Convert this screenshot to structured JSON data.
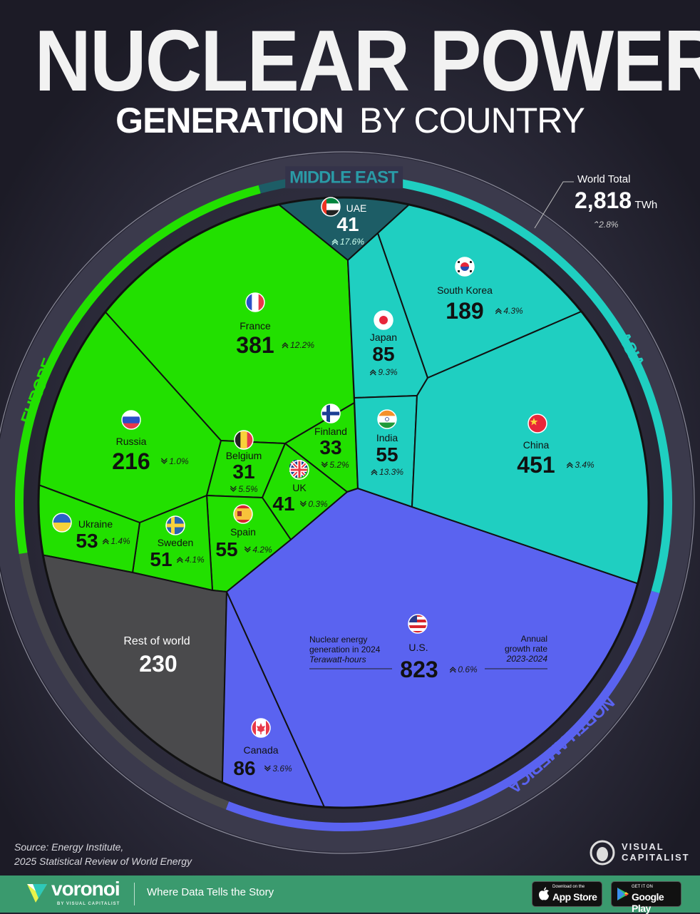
{
  "title": {
    "line1": "NUCLEAR POWER",
    "line2_bold": "GENERATION",
    "line2_light": "BY COUNTRY"
  },
  "world_total": {
    "label": "World Total",
    "value": "2,818",
    "unit": "TWh",
    "growth": "2.8%",
    "growth_direction": "up"
  },
  "colors": {
    "Europe": "#22e000",
    "Asia": "#1fcfc1",
    "Middle East": "#1d5d66",
    "North America": "#5a63f0",
    "Rest of world": "#4a4a4c",
    "background": "#22212e"
  },
  "regions": [
    "EUROPE",
    "MIDDLE EAST",
    "ASIA",
    "NORTH AMERICA"
  ],
  "annotation": {
    "left_line1": "Nuclear energy",
    "left_line2": "generation in 2024",
    "left_line3": "Terawatt-hours",
    "right_line1": "Annual",
    "right_line2": "growth rate",
    "right_line3": "2023-2024"
  },
  "chart_data": {
    "type": "voronoi",
    "unit": "TWh",
    "items": [
      {
        "country": "UAE",
        "region": "Middle East",
        "value": 41,
        "growth": "17.6%",
        "direction": "up",
        "icon": "uae-flag-icon"
      },
      {
        "country": "France",
        "region": "Europe",
        "value": 381,
        "growth": "12.2%",
        "direction": "up",
        "icon": "france-flag-icon"
      },
      {
        "country": "Russia",
        "region": "Europe",
        "value": 216,
        "growth": "1.0%",
        "direction": "down",
        "icon": "russia-flag-icon"
      },
      {
        "country": "Belgium",
        "region": "Europe",
        "value": 31,
        "growth": "5.5%",
        "direction": "down",
        "icon": "belgium-flag-icon"
      },
      {
        "country": "Finland",
        "region": "Europe",
        "value": 33,
        "growth": "5.2%",
        "direction": "down",
        "icon": "finland-flag-icon"
      },
      {
        "country": "UK",
        "region": "Europe",
        "value": 41,
        "growth": "0.3%",
        "direction": "down",
        "icon": "uk-flag-icon"
      },
      {
        "country": "Spain",
        "region": "Europe",
        "value": 55,
        "growth": "4.2%",
        "direction": "down",
        "icon": "spain-flag-icon"
      },
      {
        "country": "Sweden",
        "region": "Europe",
        "value": 51,
        "growth": "4.1%",
        "direction": "up",
        "icon": "sweden-flag-icon"
      },
      {
        "country": "Ukraine",
        "region": "Europe",
        "value": 53,
        "growth": "1.4%",
        "direction": "up",
        "icon": "ukraine-flag-icon"
      },
      {
        "country": "Rest of world",
        "region": "Rest of world",
        "value": 230,
        "growth": "",
        "direction": "",
        "icon": ""
      },
      {
        "country": "Canada",
        "region": "North America",
        "value": 86,
        "growth": "3.6%",
        "direction": "down",
        "icon": "canada-flag-icon"
      },
      {
        "country": "U.S.",
        "region": "North America",
        "value": 823,
        "growth": "0.6%",
        "direction": "up",
        "icon": "us-flag-icon"
      },
      {
        "country": "Japan",
        "region": "Asia",
        "value": 85,
        "growth": "9.3%",
        "direction": "up",
        "icon": "japan-flag-icon"
      },
      {
        "country": "South Korea",
        "region": "Asia",
        "value": 189,
        "growth": "4.3%",
        "direction": "up",
        "icon": "south-korea-flag-icon"
      },
      {
        "country": "India",
        "region": "Asia",
        "value": 55,
        "growth": "13.3%",
        "direction": "up",
        "icon": "india-flag-icon"
      },
      {
        "country": "China",
        "region": "Asia",
        "value": 451,
        "growth": "3.4%",
        "direction": "up",
        "icon": "china-flag-icon"
      }
    ]
  },
  "source": {
    "line1": "Source: Energy Institute,",
    "line2": "2025 Statistical Review of World Energy"
  },
  "brand": {
    "publisher_line1": "VISUAL",
    "publisher_line2": "CAPITALIST"
  },
  "footer": {
    "logo": "voronoi",
    "logo_sub": "BY VISUAL CAPITALIST",
    "tagline": "Where Data Tells the Story",
    "app_store_small": "Download on the",
    "app_store": "App Store",
    "google_small": "GET IT ON",
    "google": "Google Play"
  }
}
